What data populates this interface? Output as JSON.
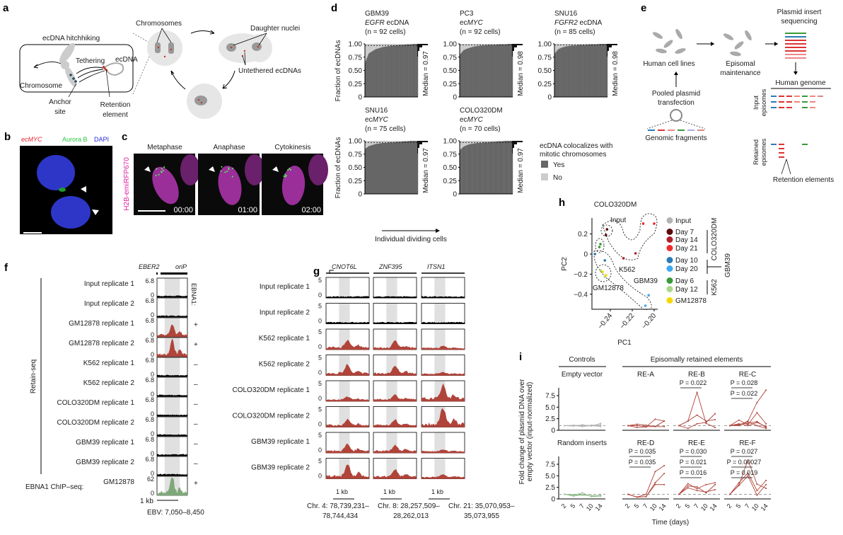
{
  "panel_labels": {
    "a": "a",
    "b": "b",
    "c": "c",
    "d": "d",
    "e": "e",
    "f": "f",
    "g": "g",
    "h": "h",
    "i": "i"
  },
  "panel_a": {
    "hitchhiking": "ecDNA hitchhiking",
    "chromosomes": "Chromosomes",
    "daughter_nuclei": "Daughter nuclei",
    "tethering": "Tethering",
    "ecdna": "ecDNA",
    "chromosome": "Chromosome",
    "anchor1": "Anchor",
    "anchor2": "site",
    "retention1": "Retention",
    "retention2": "element",
    "untethered": "Untethered ecDNAs"
  },
  "panel_b": {
    "ecmyc": "ecMYC",
    "aurora": "Aurora B",
    "dapi": "DAPI",
    "colors": {
      "ecmyc": "#e8202a",
      "aurora": "#27c93f",
      "dapi": "#2a2ae0"
    }
  },
  "panel_c": {
    "ylabel": "H2B-emiRFP670",
    "phases": [
      "Metaphase",
      "Anaphase",
      "Cytokinesis"
    ],
    "times": [
      "00:00",
      "01:00",
      "02:00"
    ]
  },
  "panel_e": {
    "plasmid1": "Plasmid insert",
    "plasmid2": "sequencing",
    "cell_lines": "Human cell lines",
    "episomal1": "Episomal",
    "episomal2": "maintenance",
    "pooled1": "Pooled plasmid",
    "pooled2": "transfection",
    "genome": "Human genome",
    "input_ep1": "Input",
    "input_ep2": "episomes",
    "genomic": "Genomic fragments",
    "retained1": "Retained",
    "retained2": "episomes",
    "retention": "Retention elements"
  },
  "panel_f": {
    "header_genes": [
      "EBER2",
      "oriP"
    ],
    "side_label": "EBNA1:",
    "group_label": "Retain-seq",
    "chip_label": "EBNA1 ChIP–seq:",
    "scale": "1 kb",
    "coords": "EBV: 7,050–8,450",
    "ymin": "0",
    "tracks": [
      {
        "label": "Input replicate 1",
        "ymax": "6.8",
        "ebna1": "",
        "peak": 0.0,
        "color": "#000000"
      },
      {
        "label": "Input replicate 2",
        "ymax": "6.8",
        "ebna1": "",
        "peak": 0.0,
        "color": "#000000"
      },
      {
        "label": "GM12878 replicate 1",
        "ymax": "6.8",
        "ebna1": "+",
        "peak": 0.55,
        "color": "#b0443a"
      },
      {
        "label": "GM12878 replicate 2",
        "ymax": "6.8",
        "ebna1": "+",
        "peak": 0.8,
        "color": "#b0443a"
      },
      {
        "label": "K562 replicate 1",
        "ymax": "6.8",
        "ebna1": "–",
        "peak": 0.0,
        "color": "#000000"
      },
      {
        "label": "K562 replicate 2",
        "ymax": "6.8",
        "ebna1": "–",
        "peak": 0.0,
        "color": "#000000"
      },
      {
        "label": "COLO320DM replicate 1",
        "ymax": "6.8",
        "ebna1": "–",
        "peak": 0.0,
        "color": "#000000"
      },
      {
        "label": "COLO320DM replicate 2",
        "ymax": "6.8",
        "ebna1": "–",
        "peak": 0.0,
        "color": "#000000"
      },
      {
        "label": "GBM39 replicate 1",
        "ymax": "6.8",
        "ebna1": "–",
        "peak": 0.0,
        "color": "#000000"
      },
      {
        "label": "GBM39 replicate 2",
        "ymax": "6.8",
        "ebna1": "–",
        "peak": 0.0,
        "color": "#000000"
      },
      {
        "label": "GM12878",
        "ymax": "62",
        "ebna1": "+",
        "peak": 0.9,
        "color": "#7fa87a"
      }
    ]
  },
  "panel_g": {
    "genes": [
      "CNOT6L",
      "ZNF395",
      "ITSN1"
    ],
    "scale": "1 kb",
    "ymax": "5",
    "ymin": "0",
    "coords": [
      [
        "Chr. 4: 78,739,231–",
        "78,744,434"
      ],
      [
        "Chr. 8: 28,257,509–",
        "28,262,013"
      ],
      [
        "Chr. 21: 35,070,953–",
        "35,073,955"
      ]
    ],
    "tracks": [
      {
        "label": "Input replicate 1",
        "peaks": [
          0.05,
          0.05,
          0.05
        ],
        "color": "#000000"
      },
      {
        "label": "Input replicate 2",
        "peaks": [
          0.05,
          0.05,
          0.05
        ],
        "color": "#000000"
      },
      {
        "label": "K562 replicate 1",
        "peaks": [
          0.4,
          0.35,
          0.1
        ],
        "color": "#b0443a"
      },
      {
        "label": "K562 replicate 2",
        "peaks": [
          0.45,
          0.4,
          0.1
        ],
        "color": "#b0443a"
      },
      {
        "label": "COLO320DM replicate 1",
        "peaks": [
          0.15,
          0.25,
          0.7
        ],
        "color": "#b0443a"
      },
      {
        "label": "COLO320DM replicate 2",
        "peaks": [
          0.3,
          0.3,
          0.85
        ],
        "color": "#b0443a"
      },
      {
        "label": "GBM39 replicate 1",
        "peaks": [
          0.35,
          0.3,
          0.1
        ],
        "color": "#b0443a"
      },
      {
        "label": "GBM39 replicate 2",
        "peaks": [
          0.6,
          0.4,
          0.15
        ],
        "color": "#b0443a"
      }
    ]
  },
  "chart_data": [
    {
      "id": "d",
      "type": "bar",
      "ylabel": "Fraction of ecDNAs",
      "xlabel": "Individual dividing cells",
      "yticks": [
        "0",
        "0.25",
        "0.50",
        "0.75",
        "1.00"
      ],
      "ylim": [
        0,
        1
      ],
      "legend": {
        "title1": "ecDNA colocalizes with",
        "title2": "mitotic chromosomes",
        "items": [
          {
            "label": "Yes",
            "color": "#666666"
          },
          {
            "label": "No",
            "color": "#cccccc"
          }
        ]
      },
      "subplots": [
        {
          "line1": "GBM39",
          "line2_it": "EGFR",
          "line2": " ecDNA",
          "n_label": "(n = 92 cells)",
          "n": 92,
          "median_label": "Median = 0.97",
          "median": 0.97,
          "sorted_yes_quantiles": [
            0.65,
            0.82,
            0.86,
            0.9,
            0.92,
            0.94,
            0.95,
            0.96,
            0.97,
            0.97,
            0.98,
            0.98,
            0.99,
            0.99,
            1,
            1
          ]
        },
        {
          "line1": "PC3",
          "line2_pre": "ec",
          "line2_it": "MYC",
          "n_label": "(n = 92 cells)",
          "n": 92,
          "median_label": "Median = 0.98",
          "median": 0.98,
          "sorted_yes_quantiles": [
            0.8,
            0.88,
            0.91,
            0.93,
            0.95,
            0.96,
            0.97,
            0.97,
            0.98,
            0.98,
            0.98,
            0.99,
            0.99,
            0.99,
            1,
            1
          ]
        },
        {
          "line1": "SNU16",
          "line2_it": "FGFR2",
          "line2": " ecDNA",
          "n_label": "(n = 85 cells)",
          "n": 85,
          "median_label": "Median = 0.98",
          "median": 0.98,
          "sorted_yes_quantiles": [
            0.82,
            0.9,
            0.93,
            0.95,
            0.96,
            0.97,
            0.97,
            0.98,
            0.98,
            0.98,
            0.99,
            0.99,
            0.99,
            1,
            1,
            1
          ]
        },
        {
          "line1": "SNU16",
          "line2_pre": "ec",
          "line2_it": "MYC",
          "n_label": "(n = 75 cells)",
          "n": 75,
          "median_label": "Median = 0.97",
          "median": 0.97,
          "sorted_yes_quantiles": [
            0.85,
            0.9,
            0.92,
            0.94,
            0.95,
            0.96,
            0.96,
            0.97,
            0.97,
            0.98,
            0.98,
            0.99,
            0.99,
            1,
            1,
            1
          ]
        },
        {
          "line1": "COLO320DM",
          "line2_pre": "ec",
          "line2_it": "MYC",
          "n_label": "(n = 70 cells)",
          "n": 70,
          "median_label": "Median = 0.97",
          "median": 0.97,
          "sorted_yes_quantiles": [
            0.83,
            0.89,
            0.92,
            0.94,
            0.95,
            0.96,
            0.96,
            0.97,
            0.97,
            0.98,
            0.98,
            0.99,
            0.99,
            1,
            1,
            1
          ]
        }
      ]
    },
    {
      "id": "h",
      "type": "scatter",
      "xlabel": "PC1",
      "ylabel": "PC2",
      "xticks": [
        "−0.24",
        "−0.22",
        "−0.20"
      ],
      "xtick_values": [
        -0.24,
        -0.22,
        -0.2
      ],
      "yticks": [
        "0.2",
        "0",
        "−0.2",
        "−0.4"
      ],
      "ytick_values": [
        0.2,
        0,
        -0.2,
        -0.4
      ],
      "annotations": [
        "COLO320DM",
        "Input",
        "K562",
        "GBM39",
        "GM12878"
      ],
      "groups": [
        {
          "label": "COLO320DM"
        },
        {
          "label": "GBM39"
        },
        {
          "label": "K562"
        }
      ],
      "series": [
        {
          "name": "Input",
          "color": "#b3b3b3",
          "points": []
        },
        {
          "name": "Day 7",
          "color": "#5c0a0a",
          "points": [
            [
              -0.243,
              0.246
            ],
            [
              -0.244,
              0.19
            ]
          ]
        },
        {
          "name": "Day 14",
          "color": "#b0202a",
          "points": [
            [
              -0.217,
              0.007
            ],
            [
              -0.228,
              -0.042
            ]
          ]
        },
        {
          "name": "Day 21",
          "color": "#ee2c2c",
          "points": [
            [
              -0.21,
              0.303
            ],
            [
              -0.2,
              0.303
            ]
          ]
        },
        {
          "name": "Day 10",
          "color": "#2b7bb9",
          "points": [
            [
              -0.254,
              0.0
            ],
            [
              -0.245,
              -0.063
            ]
          ]
        },
        {
          "name": "Day 20",
          "color": "#3fa9f5",
          "points": [
            [
              -0.205,
              -0.41
            ],
            [
              -0.208,
              -0.514
            ]
          ]
        },
        {
          "name": "Day 6",
          "color": "#3a9a3a",
          "points": [
            [
              -0.249,
              0.099
            ],
            [
              -0.25,
              0.07
            ]
          ]
        },
        {
          "name": "Day 12",
          "color": "#a8d88a",
          "points": [
            [
              -0.249,
              -0.162
            ],
            [
              -0.245,
              -0.225
            ]
          ]
        },
        {
          "name": "GM12878",
          "color": "#f5d800",
          "points": [
            [
              -0.247,
              -0.176
            ],
            [
              -0.244,
              -0.211
            ]
          ]
        }
      ]
    },
    {
      "id": "i",
      "type": "line",
      "ylabel1": "Fold change of plasmid DNA over",
      "ylabel2": "empty vector (input-normalized)",
      "xlabel": "Time (days)",
      "x": [
        "2",
        "5",
        "7",
        "10",
        "14"
      ],
      "yticks": [
        "0",
        "2.5",
        "5.0",
        "7.5"
      ],
      "ylim": [
        0,
        9
      ],
      "headers": {
        "controls": "Controls",
        "retained": "Episomally retained elements"
      },
      "subplots": [
        {
          "title": "Empty vector",
          "color": "#b3b3b3",
          "pvalues": [],
          "series": [
            [
              1,
              1,
              1,
              1,
              1
            ],
            [
              1,
              0.9,
              1.2,
              0.9,
              1.5
            ],
            [
              1,
              1,
              0.8,
              1,
              0.8
            ],
            [
              1,
              1.1,
              1,
              1.1,
              1.2
            ]
          ]
        },
        {
          "title": "RE-A",
          "color": "#b0443a",
          "pvalues": [],
          "series": [
            [
              1,
              1.3,
              1.1,
              0.8,
              2
            ],
            [
              1,
              0.6,
              0.7,
              2.4,
              2
            ],
            [
              1,
              1,
              0.8,
              0.8,
              0.8
            ]
          ]
        },
        {
          "title": "RE-B",
          "color": "#b0443a",
          "pvalues": [
            "P = 0.022"
          ],
          "series": [
            [
              1,
              2,
              8.2,
              1.5,
              0.6
            ],
            [
              1,
              2,
              3.3,
              2,
              2.3
            ],
            [
              1,
              0.4,
              1.4,
              1.7,
              3.6
            ]
          ]
        },
        {
          "title": "RE-C",
          "color": "#b0443a",
          "pvalues": [
            "P = 0.028",
            "P = 0.022"
          ],
          "series": [
            [
              1,
              1,
              2,
              6,
              8.7
            ],
            [
              1,
              2.2,
              1.2,
              3.8,
              1.4
            ],
            [
              1,
              1.3,
              1.5,
              1.9,
              0.6
            ],
            [
              1,
              1.2,
              1.8,
              1,
              0.4
            ],
            [
              1,
              1.4,
              1,
              1.7,
              0.8
            ]
          ]
        },
        {
          "title": "Random inserts",
          "color": "#8fbf8a",
          "pvalues": [],
          "series": [
            [
              1,
              0.8,
              1.3,
              0.5,
              0.6
            ],
            [
              1,
              0.6,
              0.9,
              0.6,
              0.8
            ],
            [
              1,
              0.9,
              0.8,
              0.7,
              0.7
            ]
          ]
        },
        {
          "title": "RE-D",
          "color": "#b0443a",
          "pvalues": [
            "P = 0.035",
            "P = 0.035"
          ],
          "series": [
            [
              1,
              0.4,
              1,
              5.9,
              7.2
            ],
            [
              1,
              0.4,
              0.5,
              3.5,
              5.5
            ],
            [
              1,
              0.4,
              0.5,
              3.1,
              3.1
            ]
          ]
        },
        {
          "title": "RE-E",
          "color": "#b0443a",
          "pvalues": [
            "P = 0.030",
            "P = 0.021",
            "P = 0.016"
          ],
          "series": [
            [
              1,
              3.3,
              2.2,
              3.1,
              3.5
            ],
            [
              1,
              2.8,
              2.6,
              1.3,
              3.1
            ],
            [
              1,
              2.4,
              1.8,
              1.5,
              2
            ]
          ]
        },
        {
          "title": "RE-F",
          "color": "#b0443a",
          "pvalues": [
            "P = 0.027",
            "P = 0.00027",
            "P = 0.019"
          ],
          "series": [
            [
              1,
              3,
              8.4,
              3.2,
              2.3
            ],
            [
              1,
              3.5,
              5.6,
              1.8,
              4
            ],
            [
              1,
              2.9,
              5,
              0.8,
              3.1
            ]
          ]
        }
      ]
    }
  ]
}
